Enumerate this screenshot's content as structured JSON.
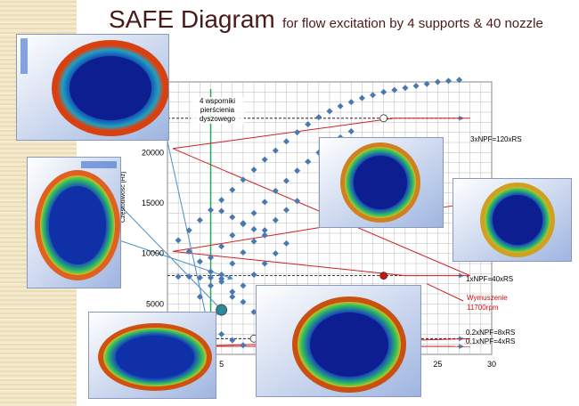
{
  "slide": {
    "title_main": "SAFE Diagram",
    "title_sub": "for flow excitation by 4 supports & 40 nozzle"
  },
  "axes": {
    "ylabel": "Częstotliwość [Hz]",
    "y_ticks": [
      "5000",
      "10000",
      "15000",
      "20000"
    ],
    "x_ticks": [
      "5",
      "25",
      "30"
    ]
  },
  "annotation": {
    "line1": "4 wsporniki",
    "line2": "pierścienia",
    "line3": "dyszowego"
  },
  "excitation_labels": {
    "npf3": "3xNPF=120xRS",
    "npf1": "1xNPF=40xRS",
    "npf02": "0.2xNPF=8xRS",
    "npf01": "0.1xNPF=4xRS"
  },
  "speed_label": {
    "line1": "Wymuszenie",
    "line2": "11700rpm"
  },
  "colors": {
    "title": "#4a1a1a",
    "red_line": "#d02020",
    "marker": "#4a78b0",
    "green_line": "#22aa55",
    "blue_arrow": "#4a90c0"
  },
  "chart_data": {
    "type": "scatter",
    "xlabel": "",
    "ylabel": "Częstotliwość [Hz]",
    "xlim": [
      0,
      30
    ],
    "ylim": [
      0,
      27000
    ],
    "x_tick_labels": [
      5,
      25,
      30
    ],
    "y_tick_labels": [
      5000,
      10000,
      15000,
      20000
    ],
    "excitation_lines_hz": [
      {
        "label": "3xNPF=120xRS",
        "value": 23400
      },
      {
        "label": "1xNPF=40xRS",
        "value": 7800
      },
      {
        "label": "0.2xNPF=8xRS",
        "value": 1560
      },
      {
        "label": "0.1xNPF=4xRS",
        "value": 780
      }
    ],
    "supports_line_x": 4,
    "points": [
      [
        1,
        7700
      ],
      [
        2,
        7700
      ],
      [
        3,
        7600
      ],
      [
        4,
        7600
      ],
      [
        5,
        7500
      ],
      [
        1,
        11300
      ],
      [
        2,
        10200
      ],
      [
        3,
        9200
      ],
      [
        4,
        8200
      ],
      [
        5,
        7200
      ],
      [
        6,
        6200
      ],
      [
        7,
        5200
      ],
      [
        8,
        4200
      ],
      [
        9,
        3200
      ],
      [
        2,
        12300
      ],
      [
        3,
        13300
      ],
      [
        4,
        14300
      ],
      [
        5,
        15300
      ],
      [
        6,
        16300
      ],
      [
        7,
        17300
      ],
      [
        8,
        18300
      ],
      [
        9,
        19300
      ],
      [
        10,
        20200
      ],
      [
        11,
        21100
      ],
      [
        12,
        22000
      ],
      [
        13,
        22800
      ],
      [
        14,
        23500
      ],
      [
        15,
        24100
      ],
      [
        16,
        24600
      ],
      [
        17,
        25000
      ],
      [
        18,
        25400
      ],
      [
        19,
        25700
      ],
      [
        20,
        26000
      ],
      [
        21,
        26200
      ],
      [
        22,
        26400
      ],
      [
        23,
        26600
      ],
      [
        24,
        26800
      ],
      [
        25,
        27000
      ],
      [
        26,
        27100
      ],
      [
        27,
        27200
      ],
      [
        4,
        9600
      ],
      [
        5,
        10700
      ],
      [
        6,
        11800
      ],
      [
        7,
        12900
      ],
      [
        8,
        14000
      ],
      [
        9,
        15100
      ],
      [
        10,
        16200
      ],
      [
        11,
        17200
      ],
      [
        12,
        18200
      ],
      [
        13,
        19100
      ],
      [
        14,
        20000
      ],
      [
        15,
        20800
      ],
      [
        16,
        21500
      ],
      [
        17,
        22100
      ],
      [
        3,
        5700
      ],
      [
        4,
        6800
      ],
      [
        5,
        7900
      ],
      [
        6,
        9000
      ],
      [
        7,
        10100
      ],
      [
        8,
        11200
      ],
      [
        9,
        12300
      ],
      [
        10,
        13300
      ],
      [
        11,
        14300
      ],
      [
        12,
        15200
      ],
      [
        4,
        3500
      ],
      [
        5,
        4600
      ],
      [
        6,
        5700
      ],
      [
        7,
        6800
      ],
      [
        8,
        7900
      ],
      [
        9,
        9000
      ],
      [
        10,
        10000
      ],
      [
        11,
        11000
      ],
      [
        5,
        14200
      ],
      [
        6,
        13600
      ],
      [
        7,
        13000
      ],
      [
        8,
        12400
      ],
      [
        9,
        11800
      ],
      [
        4,
        3000
      ],
      [
        5,
        2000
      ],
      [
        6,
        1400
      ],
      [
        7,
        900
      ]
    ],
    "resonance_markers": [
      {
        "x": 4,
        "y": 780,
        "color": "red"
      },
      {
        "x": 20,
        "y": 7800,
        "color": "red"
      },
      {
        "x": 20,
        "y": 23400,
        "color": "white"
      },
      {
        "x": 8,
        "y": 1560,
        "color": "white"
      },
      {
        "x": 5,
        "y": 4400,
        "color": "teal"
      },
      {
        "x": 10,
        "y": 5800,
        "color": "teal"
      },
      {
        "x": 20,
        "y": 15000,
        "color": "teal"
      }
    ]
  }
}
